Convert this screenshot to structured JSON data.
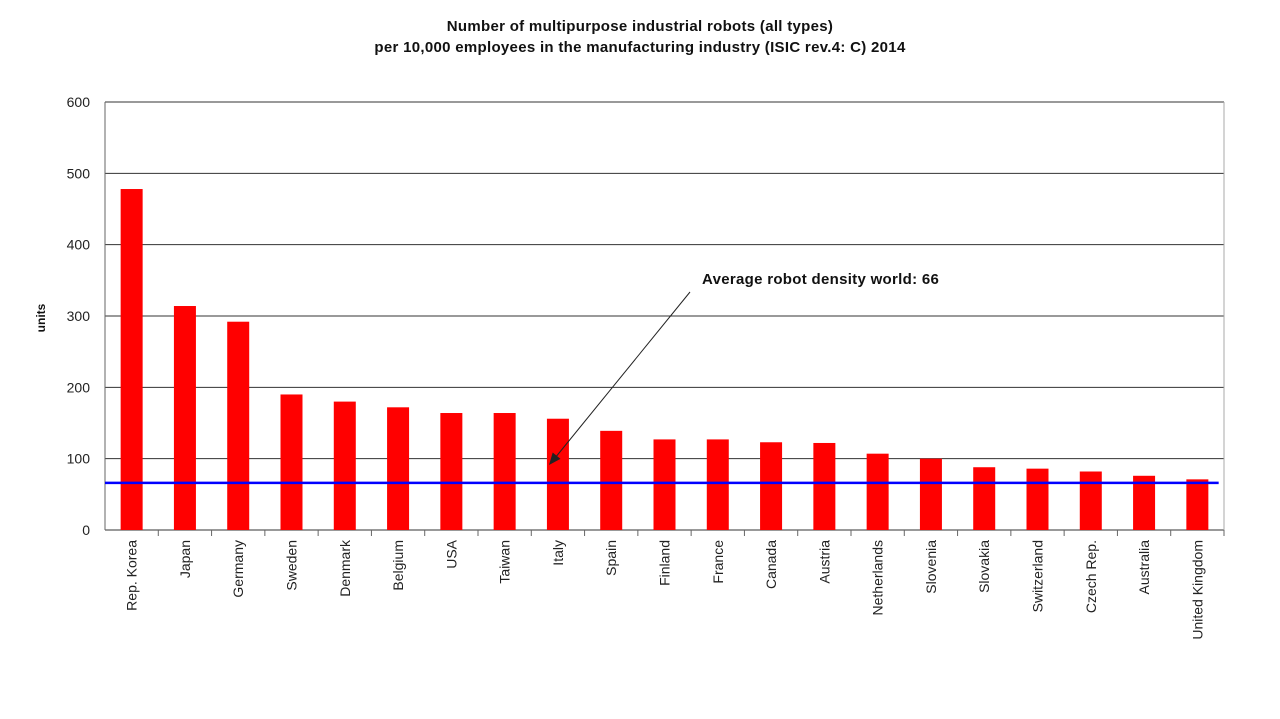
{
  "chart_data": {
    "type": "bar",
    "title_lines": [
      "Number of multipurpose industrial robots (all types)",
      "per 10,000 employees in the manufacturing industry (ISIC rev.4: C) 2014"
    ],
    "ylabel": "units",
    "ylim": [
      0,
      600
    ],
    "yticks": [
      0,
      100,
      200,
      300,
      400,
      500,
      600
    ],
    "grid": true,
    "categories": [
      "Rep. Korea",
      "Japan",
      "Germany",
      "Sweden",
      "Denmark",
      "Belgium",
      "USA",
      "Taiwan",
      "Italy",
      "Spain",
      "Finland",
      "France",
      "Canada",
      "Austria",
      "Netherlands",
      "Slovenia",
      "Slovakia",
      "Switzerland",
      "Czech Rep.",
      "Australia",
      "United Kingdom"
    ],
    "values": [
      478,
      314,
      292,
      190,
      180,
      172,
      164,
      164,
      156,
      139,
      127,
      127,
      123,
      122,
      107,
      100,
      88,
      86,
      82,
      76,
      71
    ],
    "reference_line": {
      "value": 66,
      "annotation": "Average robot density world: 66"
    },
    "colors": {
      "bar": "#ff0000",
      "reference_line": "#0000ff",
      "grid": "#333333",
      "axis": "#666666",
      "arrow": "#222222"
    }
  }
}
